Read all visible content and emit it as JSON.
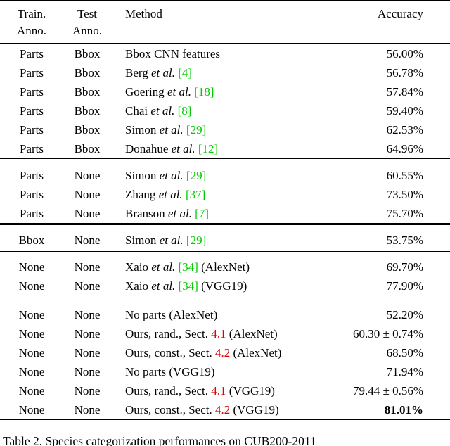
{
  "colors": {
    "background": "#ffffff",
    "text": "#000000",
    "citation": "#00cc00",
    "section_ref": "#dd0000"
  },
  "table": {
    "header": {
      "train": [
        "Train.",
        "Anno."
      ],
      "test": [
        "Test",
        "Anno."
      ],
      "method": "Method",
      "accuracy": "Accuracy"
    },
    "groups": [
      {
        "blocks": [
          [
            {
              "train": "Parts",
              "test": "Bbox",
              "method": [
                {
                  "s": "plain",
                  "t": "Bbox CNN features"
                }
              ],
              "acc": "56.00%"
            },
            {
              "train": "Parts",
              "test": "Bbox",
              "method": [
                {
                  "s": "plain",
                  "t": "Berg "
                },
                {
                  "s": "italic",
                  "t": "et al."
                },
                {
                  "s": "plain",
                  "t": " "
                },
                {
                  "s": "cite",
                  "t": "[4]"
                }
              ],
              "acc": "56.78%"
            },
            {
              "train": "Parts",
              "test": "Bbox",
              "method": [
                {
                  "s": "plain",
                  "t": "Goering "
                },
                {
                  "s": "italic",
                  "t": "et al."
                },
                {
                  "s": "plain",
                  "t": " "
                },
                {
                  "s": "cite",
                  "t": "[18]"
                }
              ],
              "acc": "57.84%"
            },
            {
              "train": "Parts",
              "test": "Bbox",
              "method": [
                {
                  "s": "plain",
                  "t": "Chai "
                },
                {
                  "s": "italic",
                  "t": "et al."
                },
                {
                  "s": "plain",
                  "t": " "
                },
                {
                  "s": "cite",
                  "t": "[8]"
                }
              ],
              "acc": "59.40%"
            },
            {
              "train": "Parts",
              "test": "Bbox",
              "method": [
                {
                  "s": "plain",
                  "t": "Simon "
                },
                {
                  "s": "italic",
                  "t": "et al."
                },
                {
                  "s": "plain",
                  "t": " "
                },
                {
                  "s": "cite",
                  "t": "[29]"
                }
              ],
              "acc": "62.53%"
            },
            {
              "train": "Parts",
              "test": "Bbox",
              "method": [
                {
                  "s": "plain",
                  "t": "Donahue "
                },
                {
                  "s": "italic",
                  "t": "et al."
                },
                {
                  "s": "plain",
                  "t": " "
                },
                {
                  "s": "cite",
                  "t": "[12]"
                }
              ],
              "acc": "64.96%"
            }
          ]
        ]
      },
      {
        "blocks": [
          [
            {
              "train": "Parts",
              "test": "None",
              "method": [
                {
                  "s": "plain",
                  "t": "Simon "
                },
                {
                  "s": "italic",
                  "t": "et al."
                },
                {
                  "s": "plain",
                  "t": " "
                },
                {
                  "s": "cite",
                  "t": "[29]"
                }
              ],
              "acc": "60.55%"
            },
            {
              "train": "Parts",
              "test": "None",
              "method": [
                {
                  "s": "plain",
                  "t": "Zhang "
                },
                {
                  "s": "italic",
                  "t": "et al."
                },
                {
                  "s": "plain",
                  "t": " "
                },
                {
                  "s": "cite",
                  "t": "[37]"
                }
              ],
              "acc": "73.50%"
            },
            {
              "train": "Parts",
              "test": "None",
              "method": [
                {
                  "s": "plain",
                  "t": "Branson "
                },
                {
                  "s": "italic",
                  "t": "et al."
                },
                {
                  "s": "plain",
                  "t": " "
                },
                {
                  "s": "cite",
                  "t": "[7]"
                }
              ],
              "acc": "75.70%"
            }
          ]
        ]
      },
      {
        "blocks": [
          [
            {
              "train": "Bbox",
              "test": "None",
              "method": [
                {
                  "s": "plain",
                  "t": "Simon "
                },
                {
                  "s": "italic",
                  "t": "et al."
                },
                {
                  "s": "plain",
                  "t": " "
                },
                {
                  "s": "cite",
                  "t": "[29]"
                }
              ],
              "acc": "53.75%"
            }
          ]
        ]
      },
      {
        "blocks": [
          [
            {
              "train": "None",
              "test": "None",
              "method": [
                {
                  "s": "plain",
                  "t": "Xaio "
                },
                {
                  "s": "italic",
                  "t": "et al."
                },
                {
                  "s": "plain",
                  "t": " "
                },
                {
                  "s": "cite",
                  "t": "[34]"
                },
                {
                  "s": "plain",
                  "t": " (AlexNet)"
                }
              ],
              "acc": "69.70%"
            },
            {
              "train": "None",
              "test": "None",
              "method": [
                {
                  "s": "plain",
                  "t": "Xaio "
                },
                {
                  "s": "italic",
                  "t": "et al."
                },
                {
                  "s": "plain",
                  "t": " "
                },
                {
                  "s": "cite",
                  "t": "[34]"
                },
                {
                  "s": "plain",
                  "t": " (VGG19)"
                }
              ],
              "acc": "77.90%"
            }
          ],
          [
            {
              "train": "None",
              "test": "None",
              "method": [
                {
                  "s": "plain",
                  "t": "No parts (AlexNet)"
                }
              ],
              "acc": "52.20%"
            },
            {
              "train": "None",
              "test": "None",
              "method": [
                {
                  "s": "plain",
                  "t": "Ours, rand., Sect. "
                },
                {
                  "s": "ref",
                  "t": "4.1"
                },
                {
                  "s": "plain",
                  "t": " (AlexNet)"
                }
              ],
              "acc": "60.30 ± 0.74%"
            },
            {
              "train": "None",
              "test": "None",
              "method": [
                {
                  "s": "plain",
                  "t": "Ours, const., Sect. "
                },
                {
                  "s": "ref",
                  "t": "4.2"
                },
                {
                  "s": "plain",
                  "t": " (AlexNet)"
                }
              ],
              "acc": "68.50%"
            },
            {
              "train": "None",
              "test": "None",
              "method": [
                {
                  "s": "plain",
                  "t": "No parts (VGG19)"
                }
              ],
              "acc": "71.94%"
            },
            {
              "train": "None",
              "test": "None",
              "method": [
                {
                  "s": "plain",
                  "t": "Ours, rand., Sect. "
                },
                {
                  "s": "ref",
                  "t": "4.1"
                },
                {
                  "s": "plain",
                  "t": " (VGG19)"
                }
              ],
              "acc": "79.44 ± 0.56%"
            },
            {
              "train": "None",
              "test": "None",
              "method": [
                {
                  "s": "plain",
                  "t": "Ours, const., Sect. "
                },
                {
                  "s": "ref",
                  "t": "4.2"
                },
                {
                  "s": "plain",
                  "t": " (VGG19)"
                }
              ],
              "acc": "81.01%",
              "bold": true
            }
          ]
        ]
      }
    ]
  },
  "caption": "Table 2. Species categorization performances on CUB200-2011"
}
